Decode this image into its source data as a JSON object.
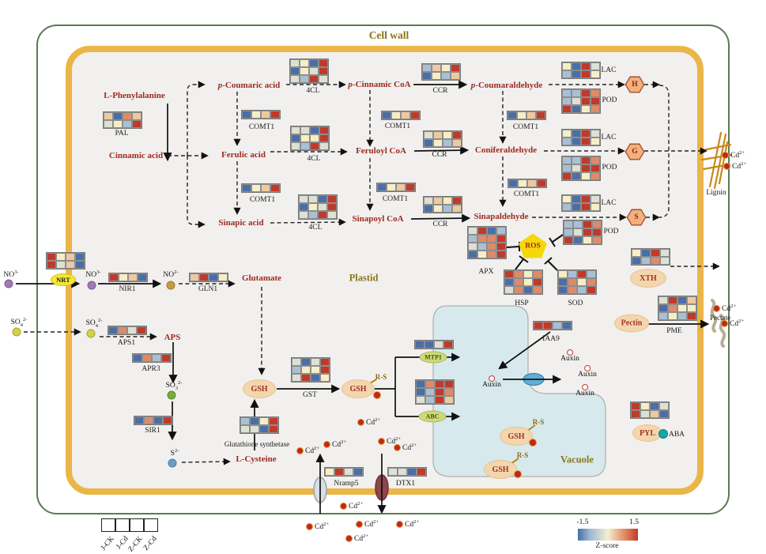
{
  "palette": {
    "R": "#c03a2b",
    "S": "#df8a68",
    "O": "#eec8a0",
    "C": "#f6eec6",
    "G": "#dde1d4",
    "L": "#a9c0d4",
    "B": "#4a6fa8"
  },
  "labels": {
    "cell_wall": "Cell wall",
    "plastid": "Plastid",
    "vacuole": "Vacuole",
    "lignin": "Lignin",
    "pectate": "Pectate",
    "p_prefix": "p-",
    "l_phenylalanine": "L-Phenylalanine",
    "cinnamic_acid": "Cinnamic acid",
    "coumaric_acid": "Coumaric acid",
    "ferulic_acid": "Ferulic acid",
    "sinapic_acid": "Sinapic acid",
    "cinnamic_coa": "Cinnamic CoA",
    "feruloyl_coa": "Feruloyl CoA",
    "sinapoyl_coa": "Sinapoyl CoA",
    "coumaraldehyde": "Coumaraldehyde",
    "coniferaldehyde": "Coniferaldehyde",
    "sinapaldehyde": "Sinapaldehyde",
    "glutamate": "Glutamate",
    "aps_metabolite": "APS",
    "l_cysteine": "L-Cysteine",
    "gsh": "GSH",
    "rs": "R-S",
    "ros": "ROS",
    "auxin": "Auxin",
    "aba": "ABA",
    "nrt": "NRT",
    "mtp1": "MTP1",
    "abc": "ABC",
    "xth": "XTH",
    "pectin": "Pectin",
    "pyl": "PYL",
    "h_unit": "H",
    "g_unit": "G",
    "s_unit": "S"
  },
  "ions": {
    "no3": {
      "base": "NO",
      "sup": "3-"
    },
    "no2": {
      "base": "NO",
      "sup": "2-"
    },
    "so4": {
      "base": "SO",
      "sub": "4",
      "sup": "2-"
    },
    "so3": {
      "base": "SO",
      "sub": "3",
      "sup": "2-"
    },
    "s2": {
      "base": "S",
      "sup": "2-"
    },
    "cd": {
      "base": "Cd",
      "sup": "2+"
    }
  },
  "legend": {
    "samples": [
      "J-CK",
      "J-Cd",
      "Z-CK",
      "Z-Cd"
    ],
    "zmin": "-1.5",
    "zmax": "1.5",
    "zscore": "Z-score"
  },
  "heatmaps": {
    "pal": {
      "label": "PAL",
      "rows": [
        [
          "O",
          "B",
          "S",
          "O"
        ],
        [
          "G",
          "C",
          "L",
          "R"
        ]
      ]
    },
    "cl4a": {
      "label": "4CL",
      "rows": [
        [
          "G",
          "C",
          "B",
          "R"
        ],
        [
          "B",
          "C",
          "G",
          "R"
        ],
        [
          "G",
          "L",
          "R",
          "G"
        ]
      ]
    },
    "cl4b": {
      "label": "4CL",
      "rows": [
        [
          "G",
          "G",
          "B",
          "R"
        ],
        [
          "B",
          "C",
          "C",
          "R"
        ],
        [
          "G",
          "L",
          "R",
          "G"
        ]
      ]
    },
    "cl4c": {
      "label": "4CL",
      "rows": [
        [
          "G",
          "G",
          "B",
          "R"
        ],
        [
          "B",
          "C",
          "G",
          "R"
        ],
        [
          "G",
          "L",
          "R",
          "G"
        ]
      ]
    },
    "comt1": {
      "label": "COMT1",
      "rows": [
        [
          "B",
          "C",
          "O",
          "R"
        ]
      ]
    },
    "ccr1": {
      "label": "CCR",
      "rows": [
        [
          "L",
          "O",
          "C",
          "R"
        ],
        [
          "B",
          "C",
          "L",
          "O"
        ]
      ]
    },
    "ccr2": {
      "label": "CCR",
      "rows": [
        [
          "G",
          "O",
          "C",
          "R"
        ],
        [
          "B",
          "C",
          "L",
          "O"
        ]
      ]
    },
    "ccr3": {
      "label": "CCR",
      "rows": [
        [
          "G",
          "O",
          "C",
          "R"
        ],
        [
          "B",
          "C",
          "L",
          "O"
        ]
      ]
    },
    "lac": {
      "label": "LAC",
      "rows": [
        [
          "C",
          "B",
          "R",
          "G"
        ],
        [
          "L",
          "B",
          "R",
          "C"
        ]
      ]
    },
    "pod": {
      "label": "POD",
      "rows": [
        [
          "L",
          "L",
          "R",
          "S"
        ],
        [
          "L",
          "G",
          "R",
          "R"
        ],
        [
          "R",
          "B",
          "C",
          "S"
        ]
      ]
    },
    "apx": {
      "label": "APX",
      "rows": [
        [
          "G",
          "R",
          "B",
          "L"
        ],
        [
          "L",
          "S",
          "S",
          "R"
        ],
        [
          "G",
          "L",
          "S",
          "R"
        ],
        [
          "B",
          "C",
          "S",
          "R"
        ]
      ]
    },
    "hsp": {
      "label": "HSP",
      "rows": [
        [
          "R",
          "S",
          "C",
          "S"
        ],
        [
          "B",
          "S",
          "C",
          "R"
        ],
        [
          "G",
          "S",
          "B",
          "S"
        ]
      ]
    },
    "sod": {
      "label": "SOD",
      "rows": [
        [
          "C",
          "L",
          "R",
          "L"
        ],
        [
          "B",
          "S",
          "C",
          "S"
        ],
        [
          "B",
          "S",
          "L",
          "R"
        ]
      ]
    },
    "nrt_hm": {
      "label": "",
      "rows": [
        [
          "R",
          "C",
          "O",
          "B"
        ],
        [
          "R",
          "G",
          "O",
          "B"
        ]
      ]
    },
    "nir1": {
      "label": "NIR1",
      "rows": [
        [
          "R",
          "C",
          "O",
          "B"
        ]
      ]
    },
    "gln1": {
      "label": "GLN1",
      "rows": [
        [
          "O",
          "R",
          "B",
          "C"
        ]
      ]
    },
    "aps1": {
      "label": "APS1",
      "rows": [
        [
          "B",
          "S",
          "G",
          "R"
        ]
      ]
    },
    "apr3": {
      "label": "APR3",
      "rows": [
        [
          "B",
          "S",
          "L",
          "R"
        ]
      ]
    },
    "sir1": {
      "label": "SIR1",
      "rows": [
        [
          "B",
          "S",
          "B",
          "R"
        ]
      ]
    },
    "gsyn": {
      "label": "Glutathione synthetase",
      "rows": [
        [
          "L",
          "B",
          "C",
          "R"
        ],
        [
          "G",
          "G",
          "B",
          "R"
        ]
      ]
    },
    "gst": {
      "label": "GST",
      "rows": [
        [
          "G",
          "B",
          "G",
          "R"
        ],
        [
          "L",
          "C",
          "C",
          "R"
        ],
        [
          "G",
          "R",
          "B",
          "C"
        ]
      ]
    },
    "mtp1_hm": {
      "label": "",
      "rows": [
        [
          "B",
          "B",
          "G",
          "R"
        ]
      ]
    },
    "abc_hm": {
      "label": "",
      "rows": [
        [
          "B",
          "S",
          "R",
          "R"
        ],
        [
          "B",
          "L",
          "R",
          "S"
        ],
        [
          "G",
          "L",
          "R",
          "O"
        ]
      ]
    },
    "iaa9": {
      "label": "IAA9",
      "rows": [
        [
          "R",
          "R",
          "L",
          "B"
        ]
      ]
    },
    "nramp5": {
      "label": "Nramp5",
      "rows": [
        [
          "C",
          "R",
          "G",
          "B"
        ]
      ]
    },
    "dtx1": {
      "label": "DTX1",
      "rows": [
        [
          "G",
          "G",
          "B",
          "R"
        ]
      ]
    },
    "xth_hm": {
      "label": "",
      "rows": [
        [
          "C",
          "B",
          "R",
          "G"
        ],
        [
          "B",
          "L",
          "S",
          "G"
        ]
      ]
    },
    "pme": {
      "label": "PME",
      "rows": [
        [
          "G",
          "R",
          "B",
          "O"
        ],
        [
          "B",
          "S",
          "C",
          "C"
        ],
        [
          "L",
          "C",
          "L",
          "R"
        ]
      ]
    },
    "pyl_hm": {
      "label": "",
      "rows": [
        [
          "R",
          "C",
          "B",
          "G"
        ],
        [
          "R",
          "G",
          "O",
          "B"
        ]
      ]
    }
  }
}
